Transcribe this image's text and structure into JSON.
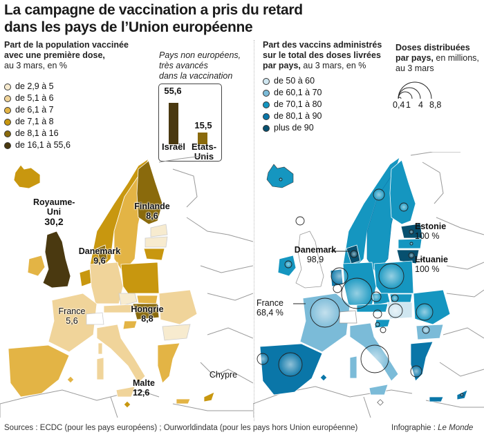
{
  "title": {
    "line1": "La campagne de vaccination a pris du retard",
    "line2": "dans les pays de l’Union européenne"
  },
  "left_panel": {
    "legend_title_bold1": "Part de la population vaccinée",
    "legend_title_bold2": "avec une première dose,",
    "legend_title_sub": "au 3 mars, en %",
    "legend": [
      {
        "label": "de 2,9 à 5",
        "color": "#f7ebcf"
      },
      {
        "label": "de 5,1 à 6",
        "color": "#f0d49a"
      },
      {
        "label": "de 6,1 à 7",
        "color": "#e3b445"
      },
      {
        "label": "de 7,1 à 8",
        "color": "#c8970f"
      },
      {
        "label": "de 8,1 à 16",
        "color": "#8a6a0c"
      },
      {
        "label": "de 16,1 à 55,6",
        "color": "#4a3910"
      }
    ],
    "inset": {
      "caption1": "Pays non européens,",
      "caption2": "très avancés",
      "caption3": "dans la vaccination",
      "bars": [
        {
          "country": "Israël",
          "value_label": "55,6",
          "value": 55.6,
          "color": "#4a3910"
        },
        {
          "country_line1": "Etats-",
          "country_line2": "Unis",
          "value_label": "15,5",
          "value": 15.5,
          "color": "#8a6a0c"
        }
      ]
    },
    "labels": {
      "uk1": "Royaume-",
      "uk2": "Uni",
      "uk_val": "30,2",
      "fin": "Finlande",
      "fin_val": "8,6",
      "dk": "Danemark",
      "dk_val": "9,6",
      "fr": "France",
      "fr_val": "5,6",
      "hu": "Hongrie",
      "hu_val": "8,8",
      "mt": "Malte",
      "mt_val": "12,6",
      "cy": "Chypre"
    }
  },
  "right_panel": {
    "legend_title_bold1": "Part des vaccins administrés",
    "legend_title_bold2": "sur le total des doses livrées",
    "legend_title_bold3": "par pays,",
    "legend_title_sub": " au 3 mars, en %",
    "legend": [
      {
        "label": "de 50 à 60",
        "color": "#cfe6f0"
      },
      {
        "label": "de 60,1 à 70",
        "color": "#7bbbd8"
      },
      {
        "label": "de 70,1 à 80",
        "color": "#1596c0"
      },
      {
        "label": "de 80,1 à 90",
        "color": "#0a76a8"
      },
      {
        "label": "plus de 90",
        "color": "#07506f"
      }
    ],
    "size_legend": {
      "title_bold1": "Doses distribuées",
      "title_bold2": "par pays,",
      "title_sub1": " en millions,",
      "title_sub2": "au 3 mars",
      "values": [
        "0,4",
        "1",
        "4",
        "8,8"
      ]
    },
    "labels": {
      "ee": "Estonie",
      "ee_val": "100 %",
      "lt": "Lituanie",
      "lt_val": "100 %",
      "dk": "Danemark",
      "dk_val": "98,9",
      "fr": "France",
      "fr_val": "68,4 %"
    }
  },
  "footer": {
    "sources": "Sources : ECDC (pour les pays européens) ; Ourworldindata (pour les pays hors Union européenne)",
    "credit_prefix": "Infographie : ",
    "credit_name": "Le Monde"
  }
}
